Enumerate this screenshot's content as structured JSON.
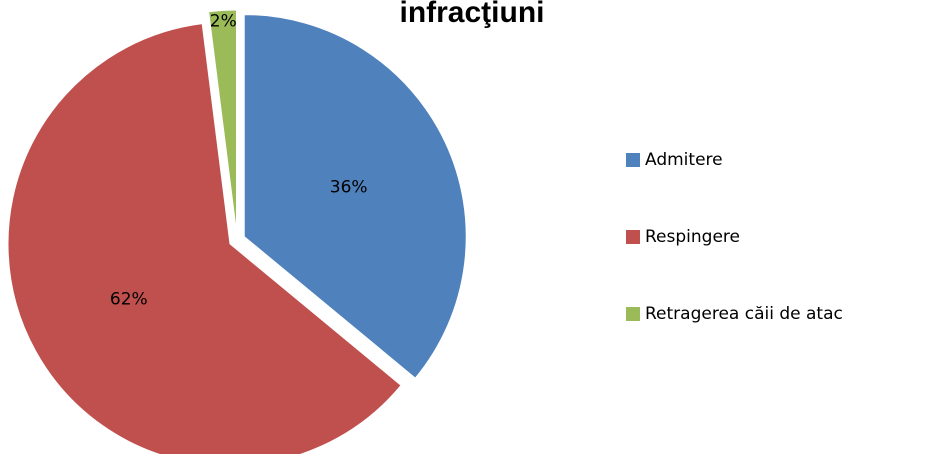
{
  "chart_data": {
    "type": "pie",
    "title": "infracţiuni",
    "categories": [
      "Admitere",
      "Respingere",
      "Retragerea căii de atac"
    ],
    "values": [
      36,
      62,
      2
    ],
    "value_labels": [
      "36%",
      "62%",
      "2%"
    ],
    "colors": [
      "#4f81bd",
      "#c0504d",
      "#9bbb59"
    ],
    "legend": "right"
  }
}
